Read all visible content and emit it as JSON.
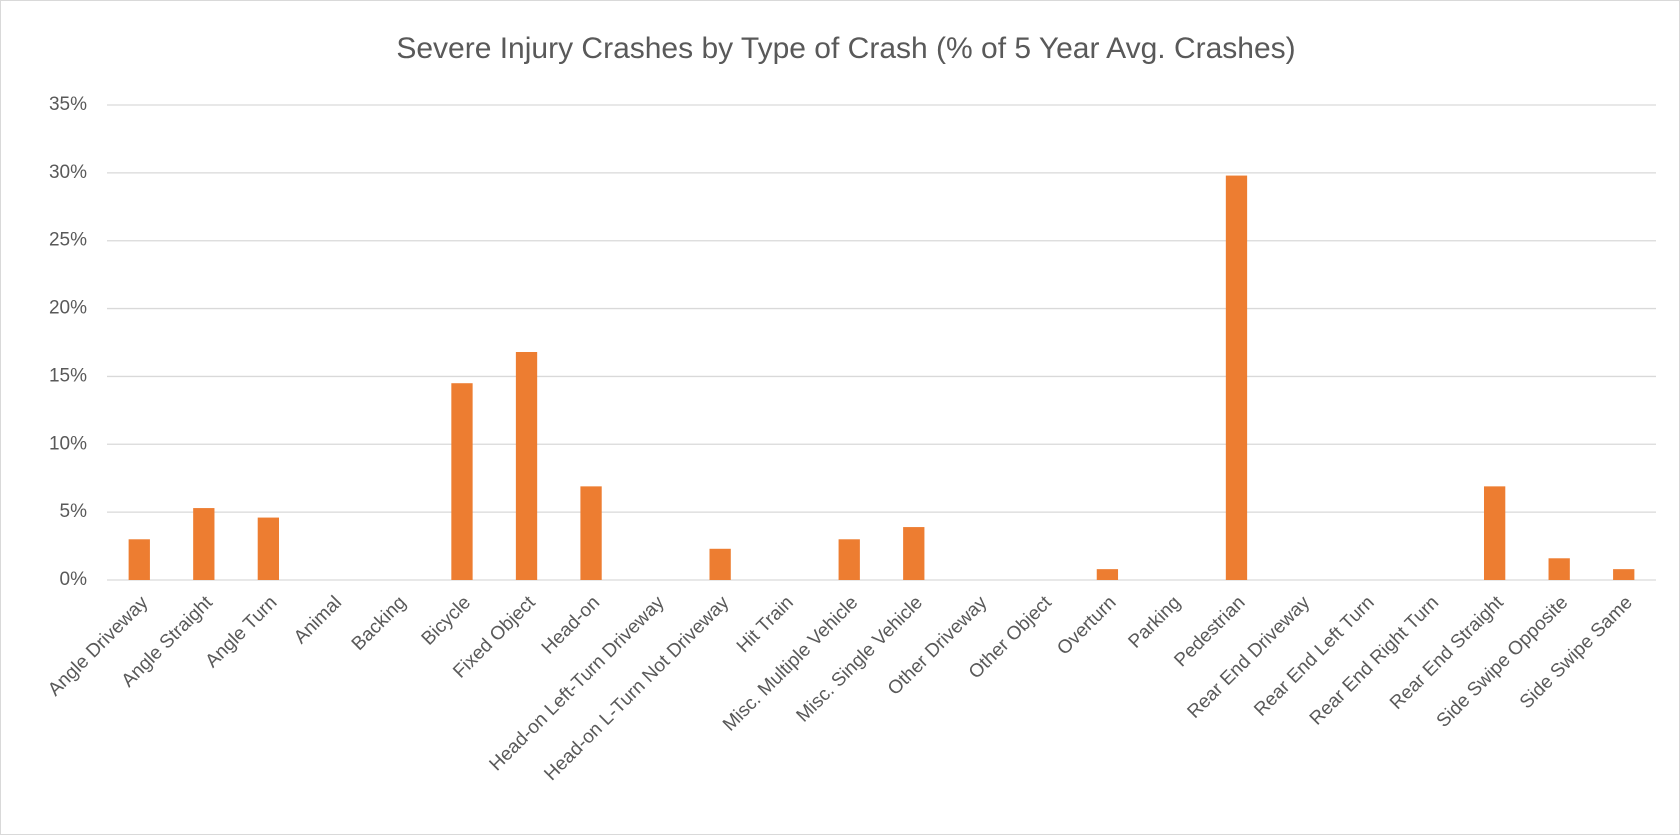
{
  "chart_data": {
    "type": "bar",
    "title": "Severe Injury Crashes by Type of Crash (% of 5 Year Avg. Crashes)",
    "categories": [
      "Angle Driveway",
      "Angle Straight",
      "Angle Turn",
      "Animal",
      "Backing",
      "Bicycle",
      "Fixed Object",
      "Head-on",
      "Head-on Left-Turn Driveway",
      "Head-on L-Turn Not Driveway",
      "Hit Train",
      "Misc. Multiple Vehicle",
      "Misc. Single Vehicle",
      "Other Driveway",
      "Other Object",
      "Overturn",
      "Parking",
      "Pedestrian",
      "Rear End Driveway",
      "Rear End Left Turn",
      "Rear End Right Turn",
      "Rear End Straight",
      "Side Swipe Opposite",
      "Side Swipe Same"
    ],
    "values": [
      3.0,
      5.3,
      4.6,
      0,
      0,
      14.5,
      16.8,
      6.9,
      0,
      2.3,
      0,
      3.0,
      3.9,
      0,
      0,
      0.8,
      0,
      29.8,
      0,
      0,
      0,
      6.9,
      1.6,
      0.8
    ],
    "color": "#ed7d31",
    "ylim": [
      0,
      35
    ],
    "yticks": [
      {
        "value": 0,
        "label": "0%"
      },
      {
        "value": 5,
        "label": "5%"
      },
      {
        "value": 10,
        "label": "10%"
      },
      {
        "value": 15,
        "label": "15%"
      },
      {
        "value": 20,
        "label": "20%"
      },
      {
        "value": 25,
        "label": "25%"
      },
      {
        "value": 30,
        "label": "30%"
      },
      {
        "value": 35,
        "label": "35%"
      }
    ],
    "grid": true
  }
}
